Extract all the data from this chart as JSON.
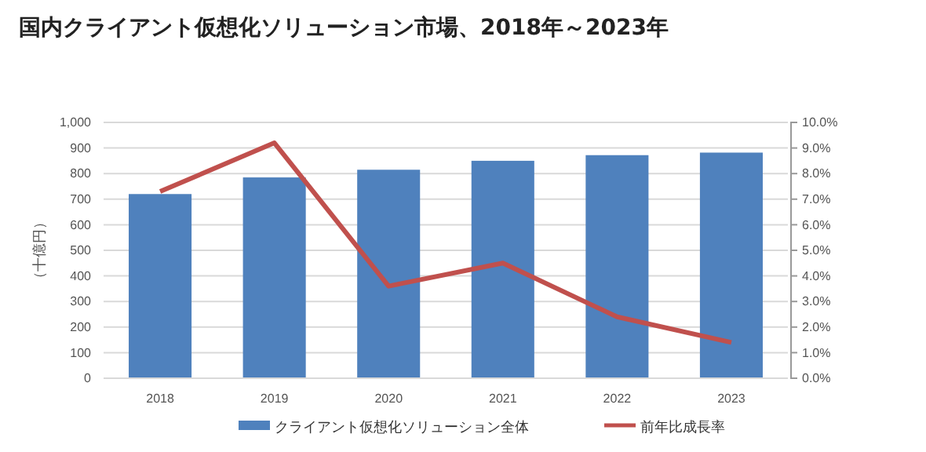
{
  "chart_data": {
    "type": "bar",
    "title": "国内クライアント仮想化ソリューション市場、2018年～2023年",
    "ylabel": "（十億円）",
    "categories": [
      "2018",
      "2019",
      "2020",
      "2021",
      "2022",
      "2023"
    ],
    "series": [
      {
        "name": "クライアント仮想化ソリューション全体",
        "color": "#4f81bd",
        "values": [
          720,
          785,
          815,
          850,
          872,
          882
        ]
      },
      {
        "name": "前年比成長率",
        "type": "line",
        "axis": "y2",
        "color": "#c0504d",
        "values": [
          7.3,
          9.2,
          3.6,
          4.5,
          2.4,
          1.4
        ]
      }
    ],
    "ylim": [
      0,
      1000
    ],
    "yticks": [
      0,
      100,
      200,
      300,
      400,
      500,
      600,
      700,
      800,
      900,
      {
        "value": 1000,
        "label": "1,000"
      }
    ],
    "y2lim": [
      0,
      10
    ],
    "y2ticks": [
      {
        "value": 0,
        "label": "0.0%"
      },
      {
        "value": 1,
        "label": "1.0%"
      },
      {
        "value": 2,
        "label": "2.0%"
      },
      {
        "value": 3,
        "label": "3.0%"
      },
      {
        "value": 4,
        "label": "4.0%"
      },
      {
        "value": 5,
        "label": "5.0%"
      },
      {
        "value": 6,
        "label": "6.0%"
      },
      {
        "value": 7,
        "label": "7.0%"
      },
      {
        "value": 8,
        "label": "8.0%"
      },
      {
        "value": 9,
        "label": "9.0%"
      },
      {
        "value": 10,
        "label": "10.0%"
      }
    ],
    "grid": "y",
    "legend": "bottom",
    "marker": "none"
  }
}
